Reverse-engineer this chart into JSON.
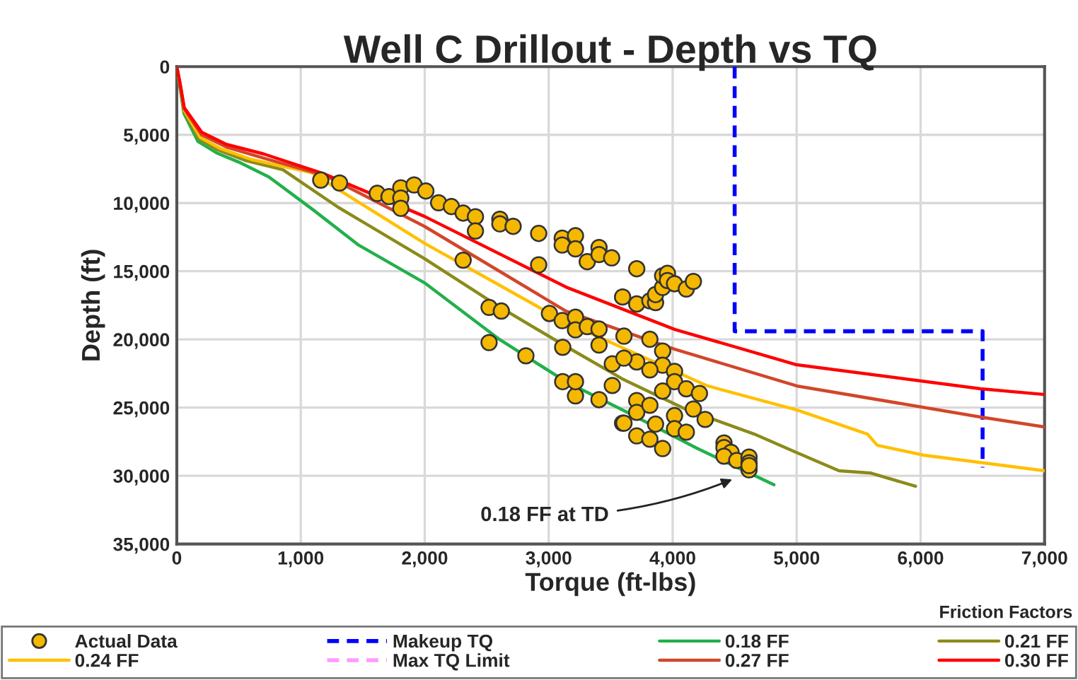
{
  "chart_data": {
    "type": "line",
    "title": "Well C Drillout - Depth vs TQ",
    "xlabel": "Torque (ft-lbs)",
    "ylabel": "Depth (ft)",
    "xlim": [
      0,
      7000
    ],
    "ylim": [
      35000,
      0
    ],
    "xticks": [
      0,
      {
        "value": 1000,
        "label": "1,000"
      },
      {
        "value": 2000,
        "label": "2,000"
      },
      {
        "value": 3000,
        "label": "3,000"
      },
      {
        "value": 4000,
        "label": "4,000"
      },
      {
        "value": 5000,
        "label": "5,000"
      },
      {
        "value": 6000,
        "label": "6,000"
      },
      {
        "value": 7000,
        "label": "7,000"
      }
    ],
    "yticks": [
      0,
      {
        "value": 5000,
        "label": "5,000"
      },
      {
        "value": 10000,
        "label": "10,000"
      },
      {
        "value": 15000,
        "label": "15,000"
      },
      {
        "value": 20000,
        "label": "20,000"
      },
      {
        "value": 25000,
        "label": "25,000"
      },
      {
        "value": 30000,
        "label": "30,000"
      },
      {
        "value": 35000,
        "label": "35,000"
      }
    ],
    "grid": true,
    "legend": "bottom",
    "annotations": [
      {
        "text": "0.18 FF at TD",
        "x": 4510,
        "y": 30150
      },
      "Friction Factors"
    ],
    "series": [
      {
        "name": "Actual Data",
        "type": "scatter",
        "marker": "circle",
        "color": "#f5b800",
        "x": [
          1161,
          1313,
          1617,
          1712,
          1807,
          1807,
          1807,
          1914,
          2009,
          2112,
          2215,
          2310,
          2409,
          2409,
          2310,
          2606,
          2606,
          2713,
          2919,
          2919,
          3109,
          3109,
          3216,
          3216,
          3311,
          3406,
          3406,
          3508,
          3596,
          2519,
          2618,
          3006,
          3109,
          3216,
          3216,
          3311,
          3406,
          2519,
          2816,
          3113,
          3406,
          3513,
          3113,
          3216,
          3406,
          3513,
          3596,
          3710,
          3710,
          3816,
          3862,
          3862,
          3919,
          3919,
          3958,
          3958,
          4015,
          4110,
          4167,
          3607,
          3816,
          3919,
          3919,
          3816,
          3710,
          3607,
          4015,
          4015,
          4110,
          4216,
          3919,
          4167,
          4262,
          3710,
          3710,
          3816,
          4015,
          4015,
          4110,
          3862,
          3607,
          3710,
          3816,
          3919,
          3216,
          4414,
          4414,
          4471,
          4414,
          4517,
          4616,
          4616,
          4616,
          4616
        ],
        "values": [
          8320,
          8530,
          9290,
          9530,
          8880,
          9630,
          10390,
          8670,
          9120,
          9980,
          10260,
          10740,
          11010,
          12050,
          14190,
          11190,
          11530,
          11710,
          12230,
          14530,
          12570,
          13080,
          12400,
          13360,
          14300,
          13260,
          13780,
          14020,
          16890,
          17650,
          17920,
          18100,
          18620,
          18370,
          19300,
          19060,
          19240,
          20230,
          21200,
          20580,
          20410,
          21790,
          23100,
          24140,
          24420,
          23380,
          26140,
          14820,
          17400,
          17170,
          17300,
          16710,
          16190,
          15330,
          15160,
          15680,
          15920,
          16300,
          15750,
          19760,
          19990,
          20850,
          21890,
          22240,
          21650,
          21370,
          22340,
          23100,
          23620,
          23960,
          23790,
          25100,
          25870,
          24480,
          25350,
          24830,
          25590,
          26550,
          26800,
          26210,
          26140,
          27070,
          27320,
          28000,
          23100,
          27590,
          27930,
          28280,
          28560,
          28870,
          28630,
          29040,
          29560,
          29250
        ]
      },
      {
        "name": "Makeup TQ",
        "line_style": "dashed",
        "color": "#0000ff",
        "x": [
          4500,
          4500,
          6500,
          6500
        ],
        "values": [
          0,
          19400,
          19400,
          29400
        ]
      },
      {
        "name": "0.18 FF",
        "line_style": "solid",
        "color": "#22b04b",
        "x": [
          0,
          23,
          57,
          171,
          320,
          500,
          742,
          1100,
          1461,
          1998,
          2603,
          3139,
          3596,
          4200,
          4817
        ],
        "values": [
          0,
          1350,
          3420,
          5490,
          6320,
          7000,
          8080,
          10500,
          13050,
          15850,
          20000,
          23100,
          25170,
          28000,
          30660
        ]
      },
      {
        "name": "0.21 FF",
        "line_style": "solid",
        "color": "#8b8b1a",
        "x": [
          0,
          25,
          60,
          180,
          330,
          560,
          856,
          1300,
          2000,
          2600,
          3139,
          3596,
          4100,
          4658,
          5000,
          5342,
          5600,
          5959
        ],
        "values": [
          0,
          1300,
          3300,
          5300,
          6100,
          6900,
          7560,
          10300,
          14090,
          17600,
          20510,
          22900,
          25100,
          26940,
          28300,
          29630,
          29800,
          30770
        ]
      },
      {
        "name": "0.24 FF",
        "line_style": "solid",
        "color": "#ffc000",
        "x": [
          0,
          25,
          60,
          190,
          350,
          600,
          1085,
          1998,
          3139,
          3368,
          4281,
          5000,
          5571,
          5650,
          6027,
          7000
        ],
        "values": [
          0,
          1250,
          3200,
          5200,
          6000,
          6800,
          7770,
          12950,
          18750,
          19680,
          23410,
          25170,
          26940,
          27760,
          28490,
          29630
        ]
      },
      {
        "name": "Max TQ Limit",
        "line_style": "dashed",
        "color": "#ff99ff"
      },
      {
        "name": "0.27 FF",
        "line_style": "solid",
        "color": "#d2462a",
        "x": [
          0,
          25,
          60,
          200,
          400,
          700,
          1200,
          1998,
          3139,
          4018,
          5000,
          6484,
          7000
        ],
        "values": [
          0,
          1200,
          3100,
          5000,
          5900,
          6700,
          8000,
          11710,
          17920,
          20720,
          23410,
          25690,
          26420
        ]
      },
      {
        "name": "0.30 FF",
        "line_style": "solid",
        "color": "#ff0000",
        "x": [
          0,
          25,
          60,
          200,
          400,
          700,
          1200,
          1998,
          3139,
          4018,
          5000,
          6484,
          7000
        ],
        "values": [
          0,
          1150,
          3000,
          4800,
          5700,
          6400,
          7900,
          10980,
          16160,
          19270,
          21860,
          23620,
          24040
        ]
      }
    ]
  }
}
